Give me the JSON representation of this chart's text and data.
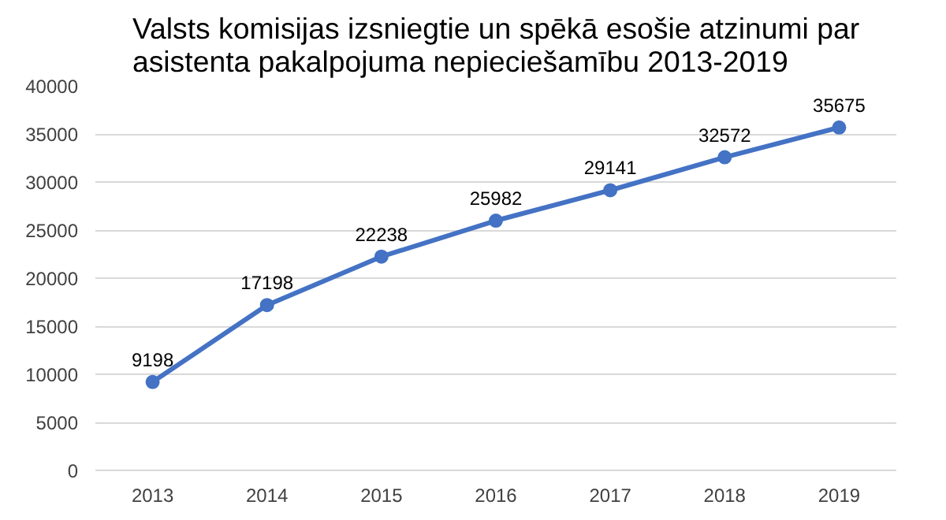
{
  "chart_data": {
    "type": "line",
    "title": "Valsts komisijas izsniegtie un spēkā esošie atzinumi par asistenta pakalpojuma nepieciešamību 2013-2019",
    "categories": [
      "2013",
      "2014",
      "2015",
      "2016",
      "2017",
      "2018",
      "2019"
    ],
    "values": [
      9198,
      17198,
      22238,
      25982,
      29141,
      32572,
      35675
    ],
    "color": "#4472c4",
    "ylim": [
      0,
      40000
    ],
    "yticks": [
      0,
      5000,
      10000,
      15000,
      20000,
      25000,
      30000,
      35000,
      40000
    ],
    "grid": "y",
    "marker": "circle",
    "line_style": "solid",
    "data_labels": true
  }
}
